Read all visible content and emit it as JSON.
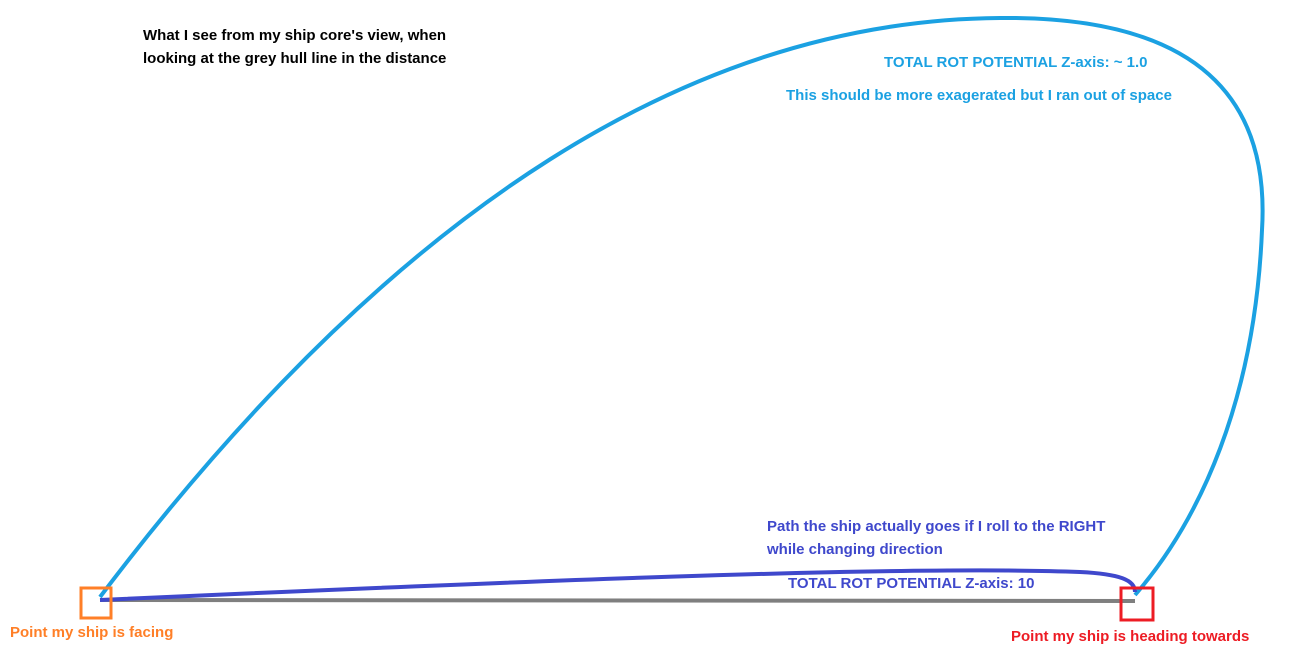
{
  "caption": {
    "line1": "What I see from my ship core's view, when",
    "line2": "looking at the grey hull line in the distance"
  },
  "light_blue_path": {
    "line1": "TOTAL ROT POTENTIAL Z-axis: ~ 1.0",
    "line2": "This should be more exagerated but I ran out of space"
  },
  "dark_blue_path": {
    "line1": "Path the ship actually goes if I roll to the RIGHT",
    "line2": "while changing direction",
    "line3": "TOTAL ROT POTENTIAL Z-axis: 10"
  },
  "start_label": "Point my ship is facing",
  "end_label": "Point my ship is heading towards"
}
